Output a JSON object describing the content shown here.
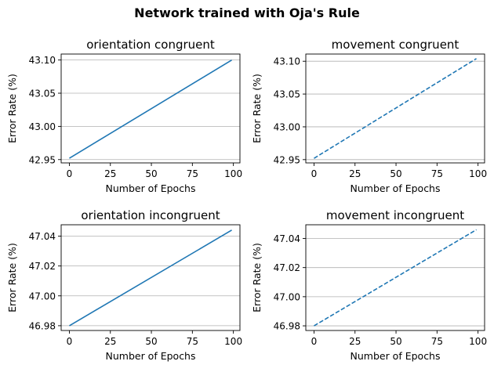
{
  "figure": {
    "suptitle": "Network trained with Oja's Rule"
  },
  "chart_data": [
    {
      "type": "line",
      "title": "orientation congruent",
      "xlabel": "Number of Epochs",
      "ylabel": "Error Rate (%)",
      "x": [
        0,
        99
      ],
      "series": [
        {
          "values": [
            42.952,
            43.1
          ],
          "style": "solid",
          "color": "#1f77b4"
        }
      ],
      "xlim": [
        -5,
        104
      ],
      "ylim": [
        42.945,
        43.109
      ],
      "xticks": [
        0,
        25,
        50,
        75,
        100
      ],
      "yticks": [
        42.95,
        43.0,
        43.05,
        43.1
      ],
      "ytick_labels": [
        "42.95",
        "43.00",
        "43.05",
        "43.10"
      ],
      "grid": "y"
    },
    {
      "type": "line",
      "title": "movement congruent",
      "xlabel": "Number of Epochs",
      "ylabel": "Error Rate (%)",
      "x": [
        0,
        99
      ],
      "series": [
        {
          "values": [
            42.952,
            43.104
          ],
          "style": "dashed",
          "color": "#1f77b4"
        }
      ],
      "xlim": [
        -5,
        104
      ],
      "ylim": [
        42.945,
        43.111
      ],
      "xticks": [
        0,
        25,
        50,
        75,
        100
      ],
      "yticks": [
        42.95,
        43.0,
        43.05,
        43.1
      ],
      "ytick_labels": [
        "42.95",
        "43.00",
        "43.05",
        "43.10"
      ],
      "grid": "y"
    },
    {
      "type": "line",
      "title": "orientation incongruent",
      "xlabel": "Number of Epochs",
      "ylabel": "Error Rate (%)",
      "x": [
        0,
        99
      ],
      "series": [
        {
          "values": [
            46.98,
            47.044
          ],
          "style": "solid",
          "color": "#1f77b4"
        }
      ],
      "xlim": [
        -5,
        104
      ],
      "ylim": [
        46.9768,
        47.0476
      ],
      "xticks": [
        0,
        25,
        50,
        75,
        100
      ],
      "yticks": [
        46.98,
        47.0,
        47.02,
        47.04
      ],
      "ytick_labels": [
        "46.98",
        "47.00",
        "47.02",
        "47.04"
      ],
      "grid": "y"
    },
    {
      "type": "line",
      "title": "movement incongruent",
      "xlabel": "Number of Epochs",
      "ylabel": "Error Rate (%)",
      "x": [
        0,
        99
      ],
      "series": [
        {
          "values": [
            46.98,
            47.046
          ],
          "style": "dashed",
          "color": "#1f77b4"
        }
      ],
      "xlim": [
        -5,
        104
      ],
      "ylim": [
        46.9768,
        47.0494
      ],
      "xticks": [
        0,
        25,
        50,
        75,
        100
      ],
      "yticks": [
        46.98,
        47.0,
        47.02,
        47.04
      ],
      "ytick_labels": [
        "46.98",
        "47.00",
        "47.02",
        "47.04"
      ],
      "grid": "y"
    }
  ]
}
